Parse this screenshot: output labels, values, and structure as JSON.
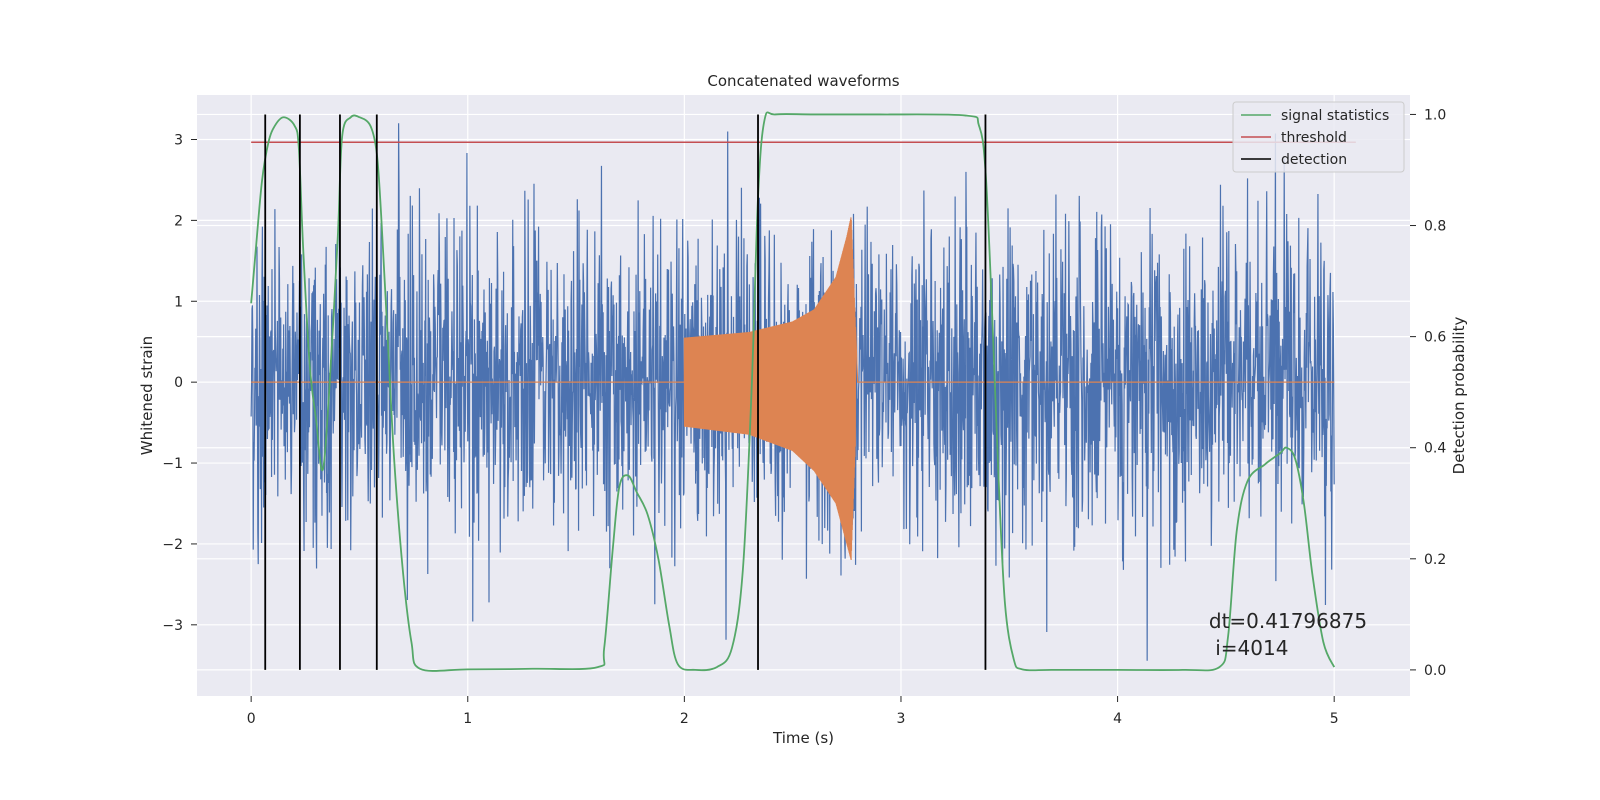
{
  "chart_data": {
    "type": "line",
    "title": "Concatenated waveforms",
    "xlabel": "Time (s)",
    "ylabel": "Whitened strain",
    "y2label": "Detection probability",
    "xlim": [
      -0.25,
      5.35
    ],
    "ylim": [
      -3.88,
      3.55
    ],
    "y2lim": [
      -0.047,
      1.035
    ],
    "x_ticks": [
      0,
      1,
      2,
      3,
      4,
      5
    ],
    "y_ticks": [
      -3,
      -2,
      -1,
      0,
      1,
      2,
      3
    ],
    "y2_ticks": [
      0.0,
      0.2,
      0.4,
      0.6,
      0.8,
      1.0
    ],
    "x_tick_labels": [
      "0",
      "1",
      "2",
      "3",
      "4",
      "5"
    ],
    "y_tick_labels": [
      "−3",
      "−2",
      "−1",
      "0",
      "1",
      "2",
      "3"
    ],
    "y2_tick_labels": [
      "0.0",
      "0.2",
      "0.4",
      "0.6",
      "0.8",
      "1.0"
    ],
    "grid": true,
    "legend_position": "top-right",
    "series": [
      {
        "name": "",
        "axis": "left",
        "kind": "noise",
        "color": "#4c72b0",
        "x_range": [
          0,
          5
        ],
        "typical_amplitude": [
          -1.8,
          2.0
        ],
        "max": 3.2,
        "min": -3.5
      },
      {
        "name": "",
        "axis": "left",
        "kind": "chirp",
        "color": "#dd8452",
        "x": [
          2.0,
          2.3,
          2.5,
          2.6,
          2.7,
          2.75,
          2.77,
          2.8,
          3.0
        ],
        "envelope_upper": [
          0.55,
          0.62,
          0.75,
          0.9,
          1.3,
          1.8,
          2.05,
          0.0,
          0.0
        ],
        "envelope_lower": [
          -0.55,
          -0.65,
          -0.85,
          -1.1,
          -1.5,
          -2.0,
          -2.2,
          0.0,
          0.0
        ]
      },
      {
        "name": "signal statistics",
        "axis": "right",
        "color": "#55a868",
        "x": [
          0.0,
          0.02,
          0.05,
          0.08,
          0.11,
          0.15,
          0.2,
          0.22,
          0.24,
          0.27,
          0.3,
          0.33,
          0.36,
          0.4,
          0.42,
          0.46,
          0.5,
          0.55,
          0.58,
          0.6,
          0.63,
          0.66,
          0.7,
          0.74,
          0.78,
          1.0,
          1.3,
          1.6,
          1.63,
          1.67,
          1.7,
          1.74,
          1.78,
          1.83,
          1.88,
          1.93,
          1.97,
          2.05,
          2.15,
          2.22,
          2.27,
          2.31,
          2.34,
          2.37,
          2.42,
          2.6,
          2.9,
          3.3,
          3.36,
          3.39,
          3.42,
          3.45,
          3.48,
          3.52,
          3.56,
          3.7,
          4.0,
          4.3,
          4.47,
          4.51,
          4.55,
          4.6,
          4.68,
          4.75,
          4.78,
          4.82,
          4.86,
          4.9,
          4.95,
          5.0
        ],
        "values": [
          0.66,
          0.75,
          0.88,
          0.95,
          0.98,
          0.995,
          0.98,
          0.94,
          0.76,
          0.55,
          0.45,
          0.36,
          0.5,
          0.78,
          0.96,
          0.995,
          0.995,
          0.98,
          0.93,
          0.82,
          0.6,
          0.38,
          0.18,
          0.05,
          0.002,
          0.001,
          0.002,
          0.005,
          0.04,
          0.22,
          0.33,
          0.35,
          0.32,
          0.28,
          0.2,
          0.08,
          0.01,
          0.0,
          0.005,
          0.04,
          0.18,
          0.5,
          0.85,
          0.99,
          1.0,
          1.0,
          1.0,
          0.998,
          0.98,
          0.9,
          0.65,
          0.35,
          0.12,
          0.02,
          0.001,
          0.0,
          0.0,
          0.0,
          0.005,
          0.06,
          0.25,
          0.34,
          0.37,
          0.39,
          0.4,
          0.38,
          0.3,
          0.17,
          0.05,
          0.005
        ]
      },
      {
        "name": "threshold",
        "axis": "right",
        "color": "#c44e52",
        "x": [
          0,
          5.1
        ],
        "values": [
          0.95,
          0.95
        ]
      },
      {
        "name": "detection",
        "axis": "right",
        "color": "#000000",
        "vertical_lines_x": [
          0.065,
          0.225,
          0.41,
          0.58,
          2.34,
          3.39
        ],
        "y_range": [
          0.0,
          1.0
        ]
      }
    ],
    "annotation": {
      "lines": [
        "dt=0.41796875",
        " i=4014"
      ],
      "x": 4.5,
      "y": -2.95
    }
  }
}
